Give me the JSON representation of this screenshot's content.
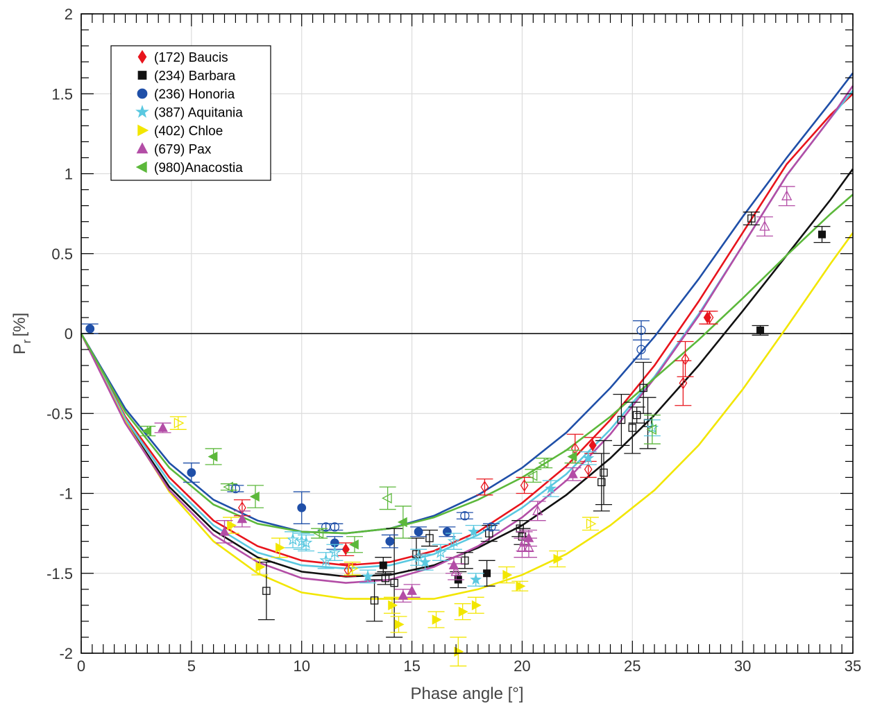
{
  "chart_data": {
    "type": "scatter",
    "title": "",
    "xlabel": "Phase angle [°]",
    "ylabel_main": "P",
    "ylabel_sub": "r",
    "ylabel_unit": "[%]",
    "xlim": [
      0,
      35
    ],
    "ylim": [
      -2,
      2
    ],
    "x_ticks": [
      0,
      5,
      10,
      15,
      20,
      25,
      30,
      35
    ],
    "y_ticks": [
      -2,
      -1.5,
      -1,
      -0.5,
      0,
      0.5,
      1,
      1.5,
      2
    ],
    "x_tick_labels": [
      "0",
      "5",
      "10",
      "15",
      "20",
      "25",
      "30",
      "35"
    ],
    "y_tick_labels": [
      "-2",
      "-1.5",
      "-1",
      "-0.5",
      "0",
      "0.5",
      "1",
      "1.5",
      "2"
    ],
    "grid": true,
    "legend_position": "top-left",
    "series": [
      {
        "name": "(172) Baucis",
        "color": "#e8141c",
        "marker": "diamond",
        "filled": [
          {
            "x": 12.0,
            "y": -1.35,
            "e": 0.04
          },
          {
            "x": 23.2,
            "y": -0.7,
            "e": 0.05
          },
          {
            "x": 28.4,
            "y": 0.1,
            "e": 0.04
          }
        ],
        "open": [
          {
            "x": 7.3,
            "y": -1.09,
            "e": 0.05
          },
          {
            "x": 12.1,
            "y": -1.48,
            "e": 0.04
          },
          {
            "x": 18.3,
            "y": -0.96,
            "e": 0.05
          },
          {
            "x": 20.1,
            "y": -0.95,
            "e": 0.05
          },
          {
            "x": 22.4,
            "y": -0.72,
            "e": 0.09
          },
          {
            "x": 23.0,
            "y": -0.85,
            "e": 0.05
          },
          {
            "x": 27.3,
            "y": -0.31,
            "e": 0.14
          },
          {
            "x": 27.4,
            "y": -0.16,
            "e": 0.11
          },
          {
            "x": 28.5,
            "y": 0.1,
            "e": 0.04
          }
        ],
        "curve": [
          [
            0,
            0
          ],
          [
            2,
            -0.52
          ],
          [
            4,
            -0.9
          ],
          [
            6,
            -1.17
          ],
          [
            8,
            -1.33
          ],
          [
            10,
            -1.42
          ],
          [
            12,
            -1.45
          ],
          [
            14,
            -1.43
          ],
          [
            16,
            -1.36
          ],
          [
            18,
            -1.24
          ],
          [
            20,
            -1.06
          ],
          [
            22,
            -0.83
          ],
          [
            24,
            -0.54
          ],
          [
            26,
            -0.2
          ],
          [
            28,
            0.2
          ],
          [
            30,
            0.63
          ],
          [
            32,
            1.06
          ],
          [
            34,
            1.37
          ],
          [
            35,
            1.5
          ]
        ]
      },
      {
        "name": "(234) Barbara",
        "color": "#111111",
        "marker": "square",
        "filled": [
          {
            "x": 13.7,
            "y": -1.45,
            "e": 0.05
          },
          {
            "x": 17.1,
            "y": -1.54,
            "e": 0.05
          },
          {
            "x": 18.4,
            "y": -1.5,
            "e": 0.08
          },
          {
            "x": 30.8,
            "y": 0.02,
            "e": 0.03
          },
          {
            "x": 33.6,
            "y": 0.62,
            "e": 0.05
          }
        ],
        "open": [
          {
            "x": 8.4,
            "y": -1.61,
            "e": 0.18
          },
          {
            "x": 13.3,
            "y": -1.67,
            "e": 0.13
          },
          {
            "x": 13.8,
            "y": -1.53,
            "e": 0.04
          },
          {
            "x": 14.2,
            "y": -1.56,
            "e": 0.34
          },
          {
            "x": 15.2,
            "y": -1.38,
            "e": 0.1
          },
          {
            "x": 15.8,
            "y": -1.28,
            "e": 0.05
          },
          {
            "x": 17.4,
            "y": -1.42,
            "e": 0.05
          },
          {
            "x": 18.5,
            "y": -1.25,
            "e": 0.05
          },
          {
            "x": 19.9,
            "y": -1.22,
            "e": 0.05
          },
          {
            "x": 20.0,
            "y": -1.27,
            "e": 0.05
          },
          {
            "x": 23.6,
            "y": -0.93,
            "e": 0.18
          },
          {
            "x": 23.7,
            "y": -0.87,
            "e": 0.2
          },
          {
            "x": 24.5,
            "y": -0.54,
            "e": 0.16
          },
          {
            "x": 25.0,
            "y": -0.59,
            "e": 0.16
          },
          {
            "x": 25.2,
            "y": -0.51,
            "e": 0.05
          },
          {
            "x": 25.5,
            "y": -0.34,
            "e": 0.16
          },
          {
            "x": 25.7,
            "y": -0.56,
            "e": 0.16
          },
          {
            "x": 30.4,
            "y": 0.72,
            "e": 0.04
          }
        ],
        "curve": [
          [
            0,
            0
          ],
          [
            2,
            -0.55
          ],
          [
            4,
            -0.96
          ],
          [
            6,
            -1.23
          ],
          [
            8,
            -1.4
          ],
          [
            10,
            -1.49
          ],
          [
            12,
            -1.52
          ],
          [
            14,
            -1.51
          ],
          [
            16,
            -1.45
          ],
          [
            18,
            -1.34
          ],
          [
            20,
            -1.2
          ],
          [
            22,
            -1.01
          ],
          [
            24,
            -0.78
          ],
          [
            26,
            -0.51
          ],
          [
            28,
            -0.2
          ],
          [
            30,
            0.14
          ],
          [
            32,
            0.49
          ],
          [
            34,
            0.84
          ],
          [
            35,
            1.03
          ]
        ]
      },
      {
        "name": "(236) Honoria",
        "color": "#1f4fa8",
        "marker": "circle",
        "filled": [
          {
            "x": 0.4,
            "y": 0.03,
            "e": 0.03
          },
          {
            "x": 5.0,
            "y": -0.87,
            "e": 0.06
          },
          {
            "x": 10.0,
            "y": -1.09,
            "e": 0.1
          },
          {
            "x": 11.5,
            "y": -1.31,
            "e": 0.04
          },
          {
            "x": 14.0,
            "y": -1.3,
            "e": 0.04
          },
          {
            "x": 15.3,
            "y": -1.24,
            "e": 0.03
          },
          {
            "x": 16.6,
            "y": -1.24,
            "e": 0.03
          }
        ],
        "open": [
          {
            "x": 7.0,
            "y": -0.97,
            "e": 0.02
          },
          {
            "x": 11.1,
            "y": -1.21,
            "e": 0.02
          },
          {
            "x": 11.5,
            "y": -1.21,
            "e": 0.02
          },
          {
            "x": 17.4,
            "y": -1.14,
            "e": 0.02
          },
          {
            "x": 18.6,
            "y": -1.21,
            "e": 0.02
          },
          {
            "x": 25.4,
            "y": 0.02,
            "e": 0.06
          },
          {
            "x": 25.4,
            "y": -0.1,
            "e": 0.06
          }
        ],
        "curve": [
          [
            0,
            0
          ],
          [
            2,
            -0.47
          ],
          [
            4,
            -0.81
          ],
          [
            6,
            -1.04
          ],
          [
            8,
            -1.17
          ],
          [
            10,
            -1.24
          ],
          [
            12,
            -1.25
          ],
          [
            14,
            -1.22
          ],
          [
            16,
            -1.14
          ],
          [
            18,
            -1.01
          ],
          [
            20,
            -0.84
          ],
          [
            22,
            -0.62
          ],
          [
            24,
            -0.34
          ],
          [
            26,
            -0.02
          ],
          [
            28,
            0.34
          ],
          [
            30,
            0.73
          ],
          [
            32,
            1.1
          ],
          [
            34,
            1.45
          ],
          [
            35,
            1.63
          ]
        ]
      },
      {
        "name": "(387) Aquitania",
        "color": "#5ac8e0",
        "marker": "star",
        "filled": [
          {
            "x": 13.0,
            "y": -1.52,
            "e": 0.04
          },
          {
            "x": 15.6,
            "y": -1.43,
            "e": 0.05
          },
          {
            "x": 17.8,
            "y": -1.24,
            "e": 0.04
          },
          {
            "x": 17.9,
            "y": -1.54,
            "e": 0.04
          },
          {
            "x": 21.3,
            "y": -0.97,
            "e": 0.05
          },
          {
            "x": 23.0,
            "y": -0.78,
            "e": 0.04
          }
        ],
        "open": [
          {
            "x": 9.6,
            "y": -1.29,
            "e": 0.05
          },
          {
            "x": 10.0,
            "y": -1.3,
            "e": 0.05
          },
          {
            "x": 10.2,
            "y": -1.31,
            "e": 0.05
          },
          {
            "x": 11.1,
            "y": -1.42,
            "e": 0.05
          },
          {
            "x": 11.5,
            "y": -1.37,
            "e": 0.05
          },
          {
            "x": 15.3,
            "y": -1.4,
            "e": 0.05
          },
          {
            "x": 16.3,
            "y": -1.37,
            "e": 0.05
          },
          {
            "x": 16.9,
            "y": -1.3,
            "e": 0.05
          },
          {
            "x": 25.9,
            "y": -0.59,
            "e": 0.05
          }
        ],
        "curve": [
          [
            0,
            0
          ],
          [
            2,
            -0.53
          ],
          [
            4,
            -0.93
          ],
          [
            6,
            -1.2
          ],
          [
            8,
            -1.37
          ],
          [
            10,
            -1.45
          ],
          [
            12,
            -1.47
          ],
          [
            14,
            -1.45
          ],
          [
            16,
            -1.38
          ],
          [
            18,
            -1.26
          ],
          [
            20,
            -1.09
          ],
          [
            22,
            -0.88
          ],
          [
            24,
            -0.6
          ],
          [
            26,
            -0.27
          ],
          [
            28,
            0.12
          ],
          [
            30,
            0.55
          ],
          [
            32,
            0.99
          ],
          [
            34,
            1.35
          ],
          [
            35,
            1.52
          ]
        ]
      },
      {
        "name": "(402) Chloe",
        "color": "#f2e600",
        "marker": "triangle-right",
        "filled": [
          {
            "x": 6.8,
            "y": -1.2,
            "e": 0.05
          },
          {
            "x": 8.1,
            "y": -1.46,
            "e": 0.05
          },
          {
            "x": 9.0,
            "y": -1.34,
            "e": 0.06
          },
          {
            "x": 14.1,
            "y": -1.7,
            "e": 0.05
          },
          {
            "x": 14.4,
            "y": -1.82,
            "e": 0.05
          },
          {
            "x": 16.1,
            "y": -1.79,
            "e": 0.05
          },
          {
            "x": 17.1,
            "y": -1.99,
            "e": 0.09
          },
          {
            "x": 17.3,
            "y": -1.74,
            "e": 0.05
          },
          {
            "x": 17.9,
            "y": -1.7,
            "e": 0.05
          },
          {
            "x": 19.3,
            "y": -1.51,
            "e": 0.05
          },
          {
            "x": 19.9,
            "y": -1.58,
            "e": 0.03
          },
          {
            "x": 21.6,
            "y": -1.41,
            "e": 0.05
          }
        ],
        "open": [
          {
            "x": 4.4,
            "y": -0.56,
            "e": 0.04
          },
          {
            "x": 12.3,
            "y": -1.47,
            "e": 0.04
          },
          {
            "x": 23.1,
            "y": -1.19,
            "e": 0.04
          }
        ],
        "curve": [
          [
            0,
            0
          ],
          [
            2,
            -0.55
          ],
          [
            4,
            -0.99
          ],
          [
            6,
            -1.3
          ],
          [
            8,
            -1.5
          ],
          [
            10,
            -1.62
          ],
          [
            12,
            -1.66
          ],
          [
            14,
            -1.66
          ],
          [
            16,
            -1.66
          ],
          [
            18,
            -1.6
          ],
          [
            20,
            -1.51
          ],
          [
            22,
            -1.38
          ],
          [
            24,
            -1.2
          ],
          [
            26,
            -0.98
          ],
          [
            28,
            -0.7
          ],
          [
            30,
            -0.35
          ],
          [
            32,
            0.04
          ],
          [
            34,
            0.44
          ],
          [
            35,
            0.63
          ]
        ]
      },
      {
        "name": "(679) Pax",
        "color": "#b34da6",
        "marker": "triangle-up",
        "filled": [
          {
            "x": 3.7,
            "y": -0.59,
            "e": 0.03
          },
          {
            "x": 6.5,
            "y": -1.24,
            "e": 0.07
          },
          {
            "x": 7.3,
            "y": -1.16,
            "e": 0.05
          },
          {
            "x": 14.6,
            "y": -1.64,
            "e": 0.04
          },
          {
            "x": 15.0,
            "y": -1.61,
            "e": 0.04
          },
          {
            "x": 16.9,
            "y": -1.45,
            "e": 0.05
          },
          {
            "x": 20.3,
            "y": -1.28,
            "e": 0.05
          },
          {
            "x": 22.3,
            "y": -0.88,
            "e": 0.04
          }
        ],
        "open": [
          {
            "x": 17.0,
            "y": -1.49,
            "e": 0.05
          },
          {
            "x": 20.0,
            "y": -1.34,
            "e": 0.06
          },
          {
            "x": 20.1,
            "y": -1.3,
            "e": 0.06
          },
          {
            "x": 20.3,
            "y": -1.34,
            "e": 0.06
          },
          {
            "x": 20.7,
            "y": -1.11,
            "e": 0.06
          },
          {
            "x": 31.0,
            "y": 0.67,
            "e": 0.06
          },
          {
            "x": 32.0,
            "y": 0.86,
            "e": 0.06
          }
        ],
        "curve": [
          [
            0,
            0
          ],
          [
            2,
            -0.56
          ],
          [
            4,
            -0.98
          ],
          [
            6,
            -1.26
          ],
          [
            8,
            -1.43
          ],
          [
            10,
            -1.53
          ],
          [
            12,
            -1.56
          ],
          [
            14,
            -1.54
          ],
          [
            16,
            -1.46
          ],
          [
            18,
            -1.33
          ],
          [
            20,
            -1.15
          ],
          [
            22,
            -0.92
          ],
          [
            24,
            -0.63
          ],
          [
            26,
            -0.28
          ],
          [
            28,
            0.11
          ],
          [
            30,
            0.55
          ],
          [
            32,
            0.99
          ],
          [
            34,
            1.35
          ],
          [
            35,
            1.55
          ]
        ]
      },
      {
        "name": "(980)Anacostia",
        "color": "#5cb83b",
        "marker": "triangle-left",
        "filled": [
          {
            "x": 3.0,
            "y": -0.61,
            "e": 0.03
          },
          {
            "x": 6.0,
            "y": -0.77,
            "e": 0.05
          },
          {
            "x": 7.9,
            "y": -1.02,
            "e": 0.07
          },
          {
            "x": 12.4,
            "y": -1.32,
            "e": 0.05
          },
          {
            "x": 14.6,
            "y": -1.18,
            "e": 0.1
          },
          {
            "x": 22.3,
            "y": -0.77,
            "e": 0.04
          }
        ],
        "open": [
          {
            "x": 6.7,
            "y": -0.96,
            "e": 0.02
          },
          {
            "x": 10.8,
            "y": -1.25,
            "e": 0.03
          },
          {
            "x": 13.9,
            "y": -1.03,
            "e": 0.07
          },
          {
            "x": 20.5,
            "y": -0.89,
            "e": 0.04
          },
          {
            "x": 21.0,
            "y": -0.81,
            "e": 0.03
          },
          {
            "x": 25.9,
            "y": -0.6,
            "e": 0.09
          }
        ],
        "curve": [
          [
            0,
            0
          ],
          [
            2,
            -0.49
          ],
          [
            4,
            -0.84
          ],
          [
            6,
            -1.07
          ],
          [
            8,
            -1.19
          ],
          [
            10,
            -1.24
          ],
          [
            12,
            -1.25
          ],
          [
            14,
            -1.22
          ],
          [
            16,
            -1.15
          ],
          [
            18,
            -1.04
          ],
          [
            20,
            -0.9
          ],
          [
            22,
            -0.73
          ],
          [
            24,
            -0.52
          ],
          [
            26,
            -0.28
          ],
          [
            28,
            -0.04
          ],
          [
            30,
            0.22
          ],
          [
            32,
            0.49
          ],
          [
            34,
            0.75
          ],
          [
            35,
            0.87
          ]
        ]
      }
    ]
  }
}
